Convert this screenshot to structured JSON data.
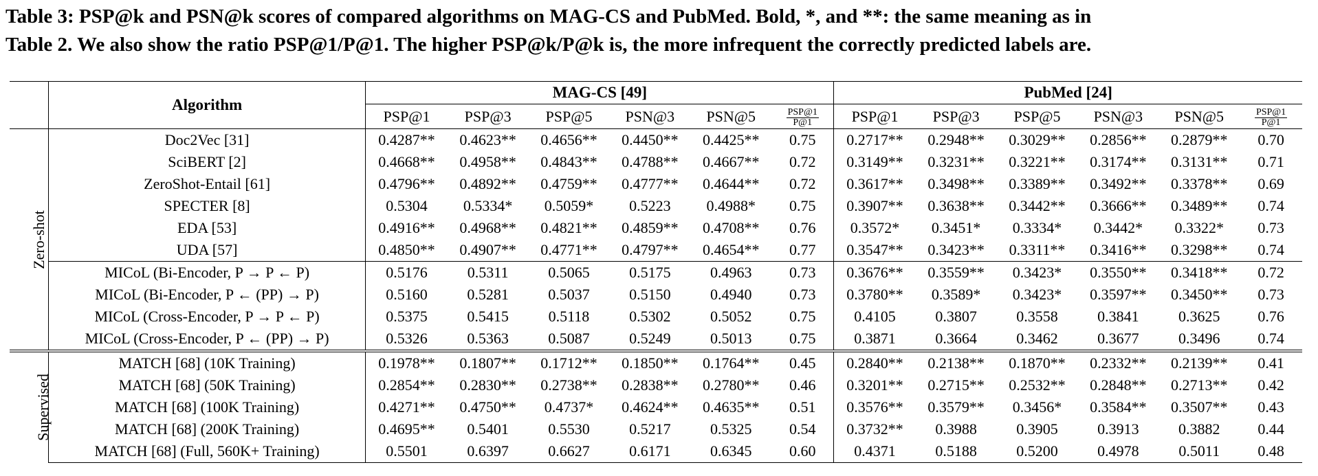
{
  "caption": {
    "label": "Table 3:",
    "line1_text": "PSP@k and PSN@k scores of compared algorithms on MAG-CS and PubMed. Bold, *, and **: the same meaning as in",
    "line2_text": "Table 2. We also show the ratio PSP@1/P@1. The higher PSP@k/P@k is, the more infrequent the correctly predicted labels are."
  },
  "header": {
    "algorithm": "Algorithm",
    "datasets": [
      "MAG-CS [49]",
      "PubMed [24]"
    ],
    "metrics": [
      "PSP@1",
      "PSP@3",
      "PSP@5",
      "PSN@3",
      "PSN@5"
    ],
    "ratio_num": "PSP@1",
    "ratio_den": "P@1"
  },
  "groups": [
    {
      "label": "Zero-shot",
      "sections": [
        {
          "rows": [
            {
              "algorithm": "Doc2Vec [31]",
              "mag": [
                "0.4287**",
                "0.4623**",
                "0.4656**",
                "0.4450**",
                "0.4425**",
                "0.75"
              ],
              "pubmed": [
                "0.2717**",
                "0.2948**",
                "0.3029**",
                "0.2856**",
                "0.2879**",
                "0.70"
              ]
            },
            {
              "algorithm": "SciBERT [2]",
              "mag": [
                "0.4668**",
                "0.4958**",
                "0.4843**",
                "0.4788**",
                "0.4667**",
                "0.72"
              ],
              "pubmed": [
                "0.3149**",
                "0.3231**",
                "0.3221**",
                "0.3174**",
                "0.3131**",
                "0.71"
              ]
            },
            {
              "algorithm": "ZeroShot-Entail [61]",
              "mag": [
                "0.4796**",
                "0.4892**",
                "0.4759**",
                "0.4777**",
                "0.4644**",
                "0.72"
              ],
              "pubmed": [
                "0.3617**",
                "0.3498**",
                "0.3389**",
                "0.3492**",
                "0.3378**",
                "0.69"
              ]
            },
            {
              "algorithm": "SPECTER [8]",
              "mag": [
                "0.5304",
                "0.5334*",
                "0.5059*",
                "0.5223",
                "0.4988*",
                "0.75"
              ],
              "pubmed": [
                "0.3907**",
                "0.3638**",
                "0.3442**",
                "0.3666**",
                "0.3489**",
                "0.74"
              ]
            },
            {
              "algorithm": "EDA [53]",
              "mag": [
                "0.4916**",
                "0.4968**",
                "0.4821**",
                "0.4859**",
                "0.4708**",
                "0.76"
              ],
              "pubmed": [
                "0.3572*",
                "0.3451*",
                "0.3334*",
                "0.3442*",
                "0.3322*",
                "0.73"
              ]
            },
            {
              "algorithm": "UDA [57]",
              "mag": [
                "0.4850**",
                "0.4907**",
                "0.4771**",
                "0.4797**",
                "0.4654**",
                "0.77"
              ],
              "pubmed": [
                "0.3547**",
                "0.3423**",
                "0.3311**",
                "0.3416**",
                "0.3298**",
                "0.74"
              ]
            }
          ]
        },
        {
          "rows": [
            {
              "algorithm": "MICoL (Bi-Encoder, P → P ← P)",
              "mag": [
                "0.5176",
                "0.5311",
                "0.5065",
                "0.5175",
                "0.4963",
                "0.73"
              ],
              "pubmed": [
                "0.3676**",
                "0.3559**",
                "0.3423*",
                "0.3550**",
                "0.3418**",
                "0.72"
              ]
            },
            {
              "algorithm": "MICoL (Bi-Encoder, P ← (PP) → P)",
              "mag": [
                "0.5160",
                "0.5281",
                "0.5037",
                "0.5150",
                "0.4940",
                "0.73"
              ],
              "pubmed": [
                "0.3780**",
                "0.3589*",
                "0.3423*",
                "0.3597**",
                "0.3450**",
                "0.73"
              ]
            },
            {
              "algorithm": "MICoL (Cross-Encoder, P → P ← P)",
              "bold": true,
              "mag": [
                "0.5375",
                "0.5415",
                "0.5118",
                "0.5302",
                "0.5052",
                "0.75"
              ],
              "pubmed": [
                "0.4105",
                "0.3807",
                "0.3558",
                "0.3841",
                "0.3625",
                "0.76"
              ]
            },
            {
              "algorithm": "MICoL (Cross-Encoder, P ← (PP) → P)",
              "mag": [
                "0.5326",
                "0.5363",
                "0.5087",
                "0.5249",
                "0.5013",
                "0.75"
              ],
              "pubmed": [
                "0.3871",
                "0.3664",
                "0.3462",
                "0.3677",
                "0.3496",
                "0.74"
              ]
            }
          ]
        }
      ]
    },
    {
      "label": "Supervised",
      "sections": [
        {
          "rows": [
            {
              "algorithm": "MATCH [68] (10K Training)",
              "mag": [
                "0.1978**",
                "0.1807**",
                "0.1712**",
                "0.1850**",
                "0.1764**",
                "0.45"
              ],
              "pubmed": [
                "0.2840**",
                "0.2138**",
                "0.1870**",
                "0.2332**",
                "0.2139**",
                "0.41"
              ]
            },
            {
              "algorithm": "MATCH [68] (50K Training)",
              "mag": [
                "0.2854**",
                "0.2830**",
                "0.2738**",
                "0.2838**",
                "0.2780**",
                "0.46"
              ],
              "pubmed": [
                "0.3201**",
                "0.2715**",
                "0.2532**",
                "0.2848**",
                "0.2713**",
                "0.42"
              ]
            },
            {
              "algorithm": "MATCH [68] (100K Training)",
              "mag": [
                "0.4271**",
                "0.4750**",
                "0.4737*",
                "0.4624**",
                "0.4635**",
                "0.51"
              ],
              "pubmed": [
                "0.3576**",
                "0.3579**",
                "0.3456*",
                "0.3584**",
                "0.3507**",
                "0.43"
              ]
            },
            {
              "algorithm": "MATCH [68] (200K Training)",
              "mag": [
                "0.4695**",
                "0.5401",
                "0.5530",
                "0.5217",
                "0.5325",
                "0.54"
              ],
              "pubmed": [
                "0.3732**",
                "0.3988",
                "0.3905",
                "0.3913",
                "0.3882",
                "0.44"
              ]
            },
            {
              "algorithm": "MATCH [68] (Full, 560K+ Training)",
              "mag": [
                "0.5501",
                "0.6397",
                "0.6627",
                "0.6171",
                "0.6345",
                "0.60"
              ],
              "pubmed": [
                "0.4371",
                "0.5188",
                "0.5200",
                "0.4978",
                "0.5011",
                "0.48"
              ]
            }
          ]
        }
      ]
    }
  ]
}
